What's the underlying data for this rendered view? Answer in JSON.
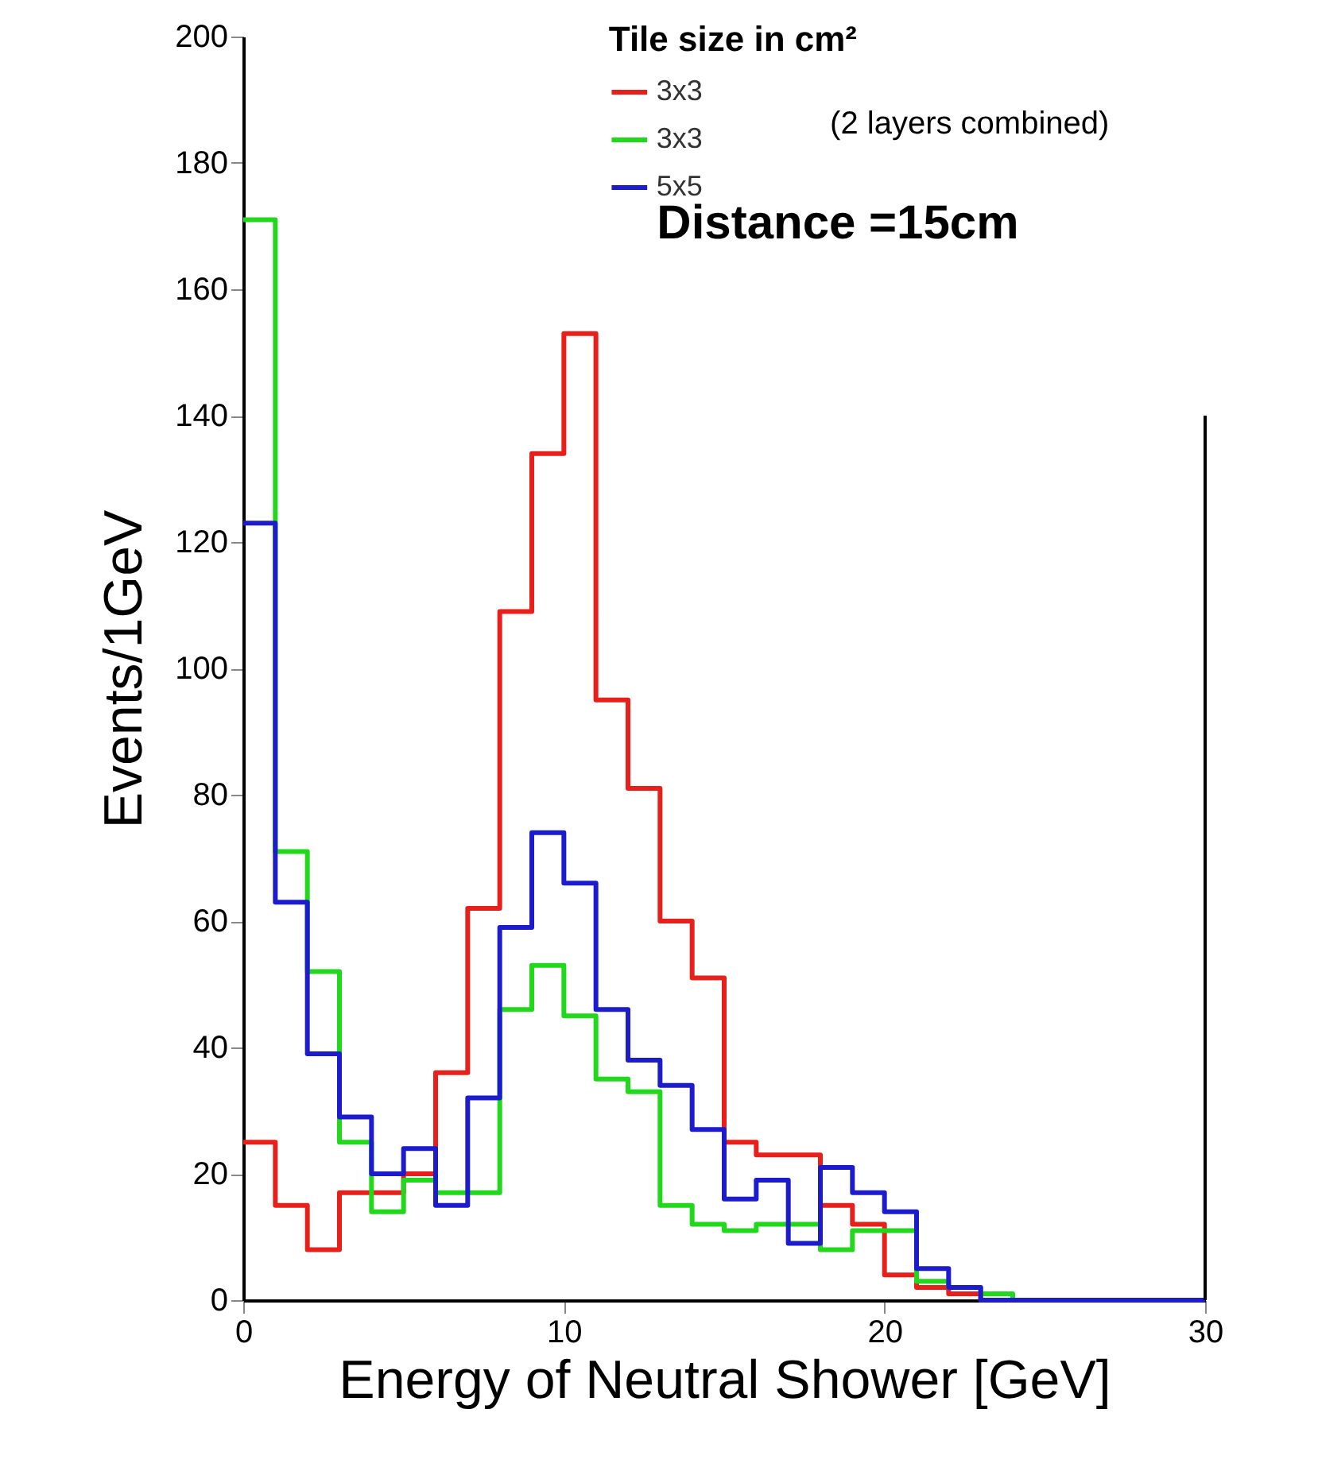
{
  "chart_data": {
    "type": "histogram",
    "xlabel": "Energy of Neutral Shower [GeV]",
    "ylabel": "Events/1GeV",
    "legend_title": "Tile size in cm²",
    "bins": [
      0,
      1,
      2,
      3,
      4,
      5,
      6,
      7,
      8,
      9,
      10,
      11,
      12,
      13,
      14,
      15,
      16,
      17,
      18,
      19,
      20,
      21,
      22,
      23,
      24,
      25,
      26,
      27,
      28,
      29,
      30
    ],
    "series": [
      {
        "name": "3x3",
        "color": "#e8201c",
        "values": [
          25,
          15,
          8,
          17,
          17,
          20,
          36,
          62,
          109,
          134,
          153,
          95,
          81,
          60,
          51,
          25,
          23,
          23,
          15,
          12,
          4,
          2,
          1,
          0,
          0,
          0,
          0,
          0,
          0,
          0
        ]
      },
      {
        "name": "3x3",
        "color": "#22d81c",
        "values": [
          171,
          71,
          52,
          25,
          14,
          19,
          17,
          17,
          46,
          53,
          45,
          35,
          33,
          15,
          12,
          11,
          12,
          12,
          8,
          11,
          11,
          3,
          2,
          1,
          0,
          0,
          0,
          0,
          0,
          0
        ]
      },
      {
        "name": "5x5",
        "color": "#1c1ccc",
        "values": [
          123,
          63,
          39,
          29,
          20,
          24,
          15,
          32,
          59,
          74,
          66,
          46,
          38,
          34,
          27,
          16,
          19,
          9,
          21,
          17,
          14,
          5,
          2,
          0,
          0,
          0,
          0,
          0,
          0,
          0
        ]
      }
    ],
    "xlim": [
      0,
      30
    ],
    "xticks": [
      0,
      10,
      20,
      30
    ],
    "ylim": [
      0,
      200
    ],
    "yticks": [
      0,
      20,
      40,
      60,
      80,
      100,
      120,
      140,
      160,
      180,
      200
    ],
    "grid": false,
    "legend": "top",
    "annotations": [
      "(2 layers combined)",
      "Distance =15cm"
    ]
  }
}
